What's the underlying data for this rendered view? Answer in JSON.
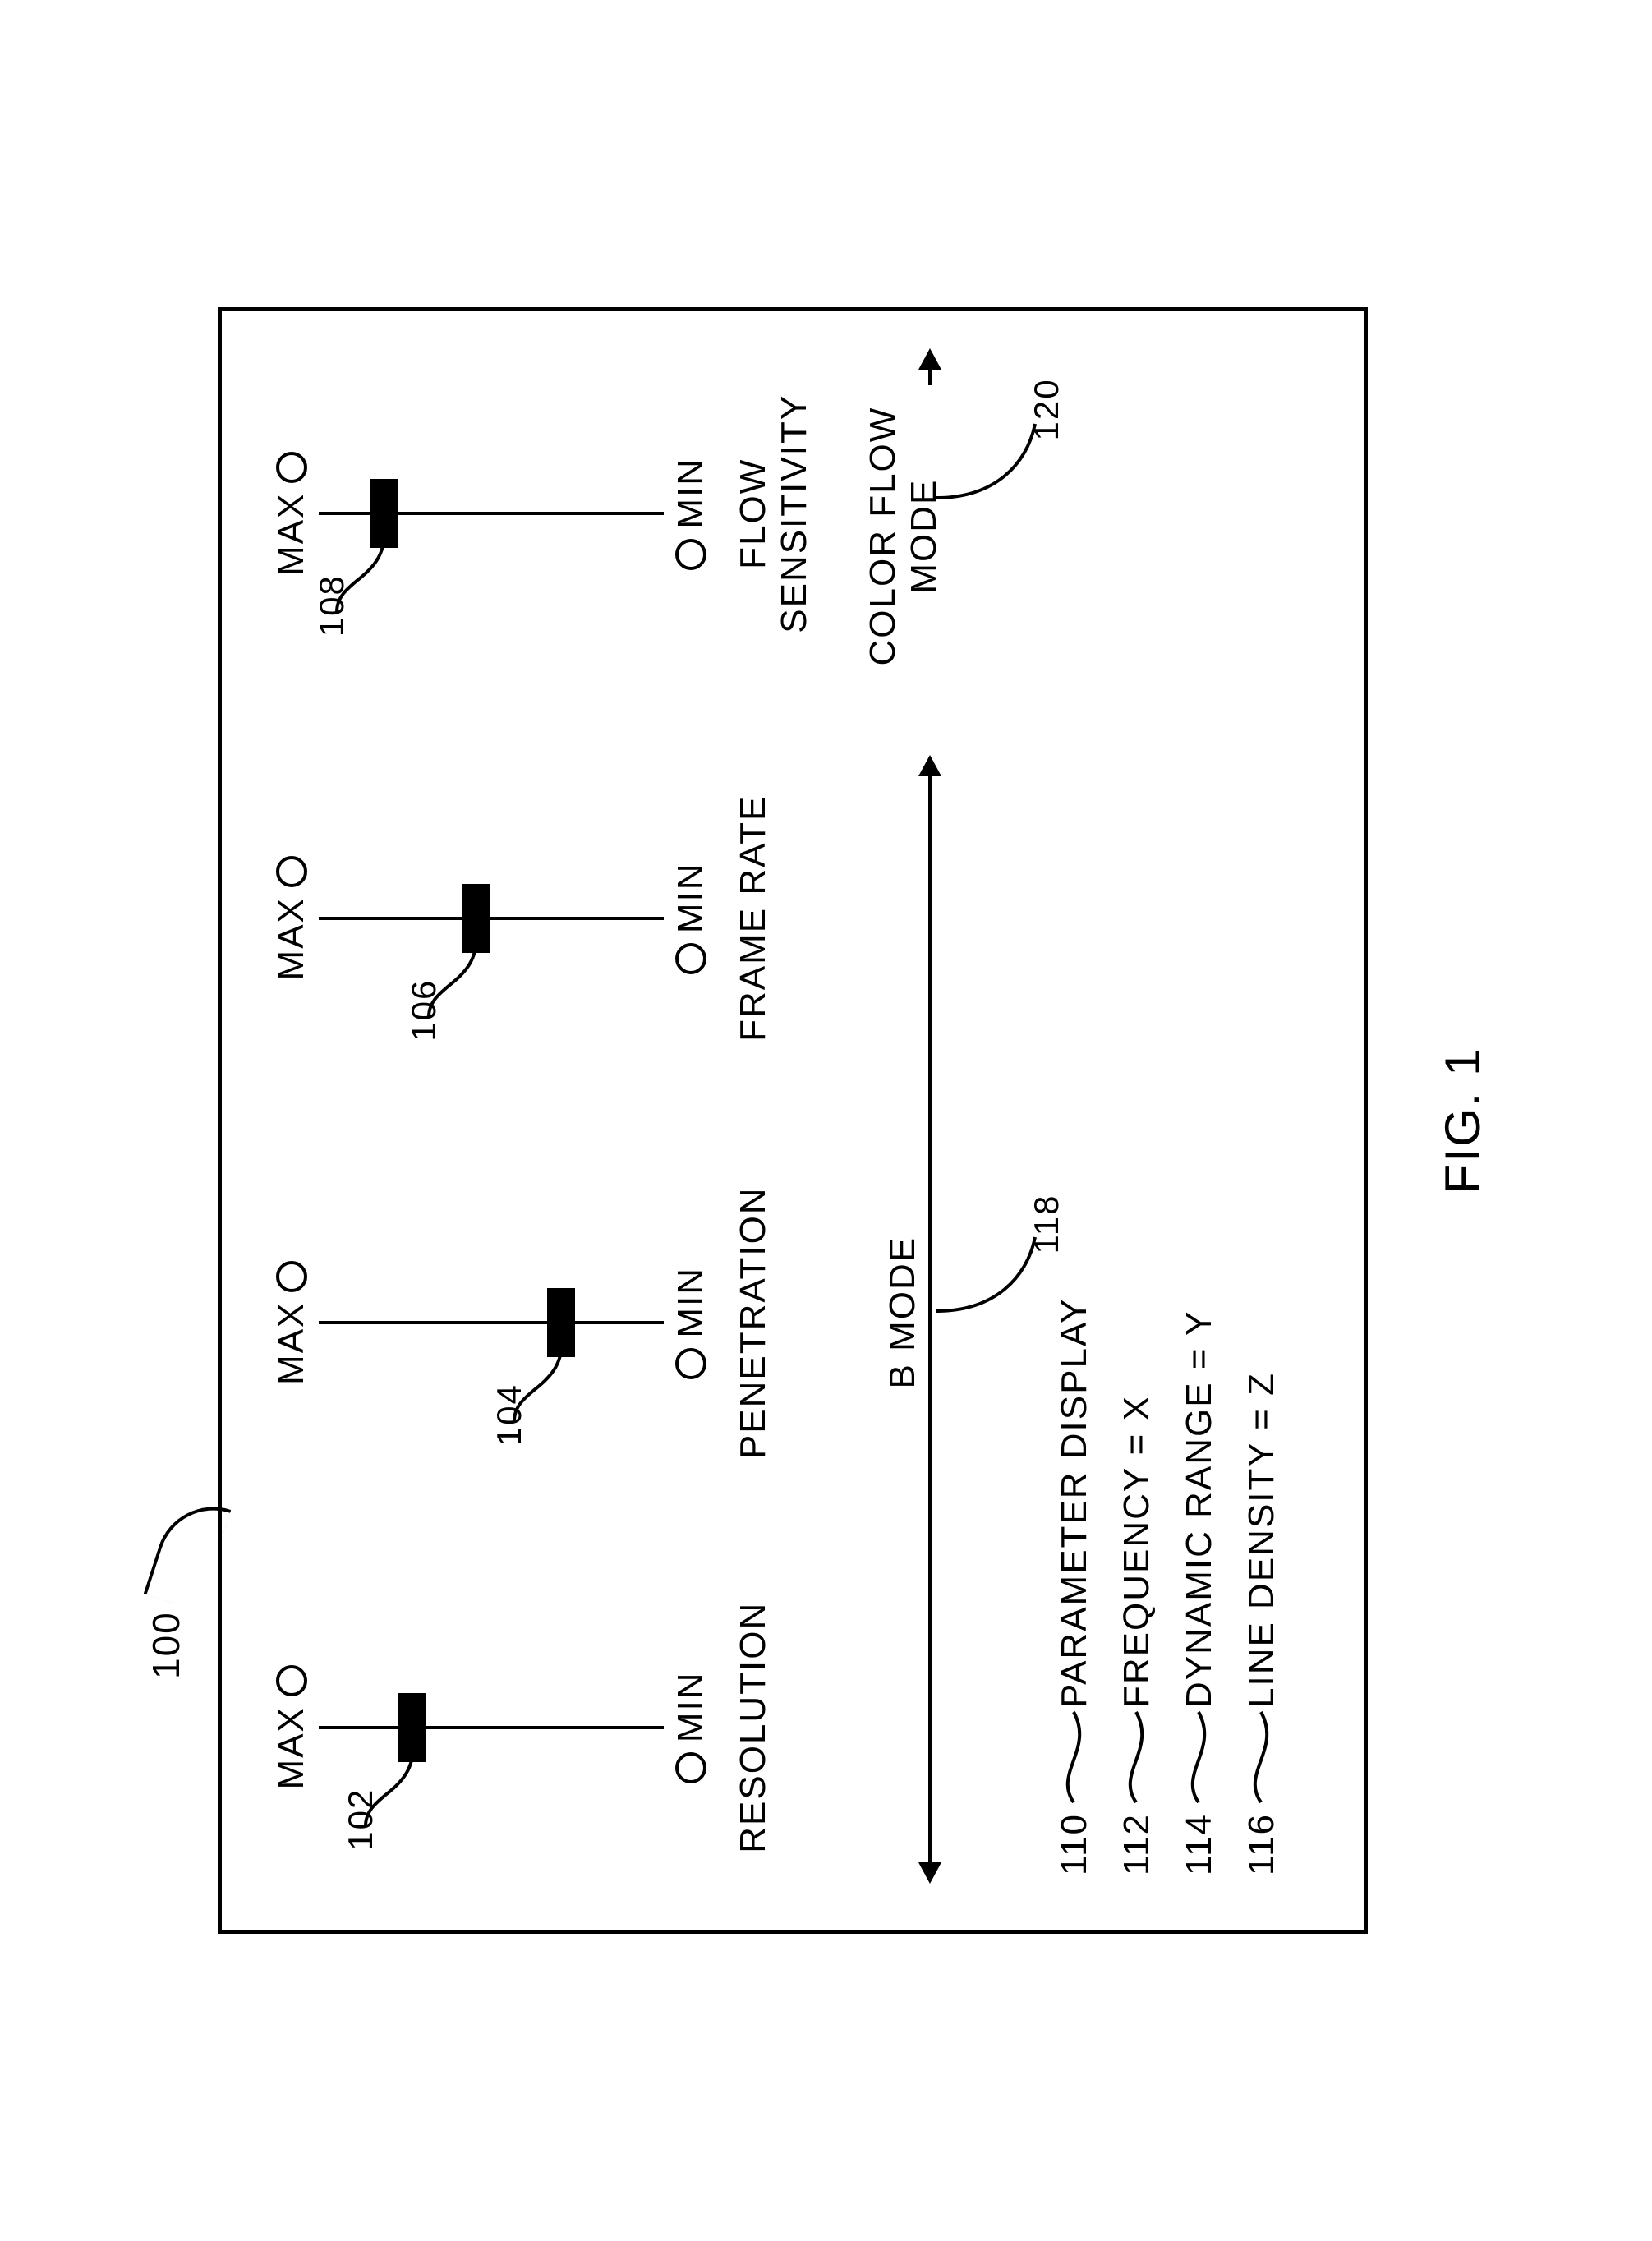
{
  "figure_ref": "100",
  "figure_caption": "FIG. 1",
  "end_labels": {
    "max": "MAX",
    "min": "MIN"
  },
  "sliders": [
    {
      "ref": "102",
      "label": "RESOLUTION",
      "thumb_pos_pct": 25,
      "ref_side": "left"
    },
    {
      "ref": "104",
      "label": "PENETRATION",
      "thumb_pos_pct": 72,
      "ref_side": "left"
    },
    {
      "ref": "106",
      "label": "FRAME RATE",
      "thumb_pos_pct": 45,
      "ref_side": "left"
    },
    {
      "ref": "108",
      "label": "FLOW SENSITIVITY",
      "thumb_pos_pct": 16,
      "ref_side": "left"
    }
  ],
  "modes": [
    {
      "ref": "118",
      "label": "B MODE",
      "span_cols": [
        0,
        2
      ]
    },
    {
      "ref": "120",
      "label": "COLOR FLOW\nMODE",
      "span_cols": [
        3,
        3
      ]
    }
  ],
  "params": [
    {
      "ref": "110",
      "text": "PARAMETER DISPLAY"
    },
    {
      "ref": "112",
      "text": "FREQUENCY = X"
    },
    {
      "ref": "114",
      "text": "DYNAMIC RANGE = Y"
    },
    {
      "ref": "116",
      "text": "LINE DENSITY = Z"
    }
  ],
  "colors": {
    "stroke": "#000000",
    "bg": "#ffffff"
  },
  "slider_geom": {
    "track_h": 420,
    "thumb_w": 84,
    "thumb_h": 34,
    "endpoint_d": 38
  },
  "text": {
    "fontsize_label": 44,
    "fontsize_caption": 60,
    "fontsize_ref": 42
  }
}
